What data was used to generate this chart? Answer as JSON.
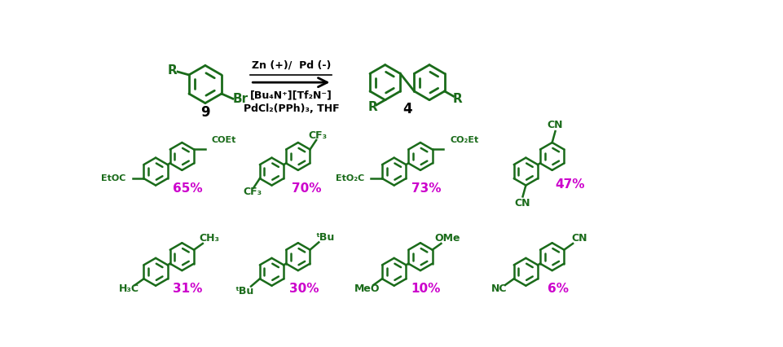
{
  "bg_color": "#ffffff",
  "dark_green": "#1a6b1a",
  "magenta": "#cc00cc",
  "black": "#000000",
  "figsize": [
    9.61,
    4.26
  ],
  "dpi": 100,
  "yields_row2": [
    "65%",
    "70%",
    "73%",
    "47%"
  ],
  "yields_row3": [
    "31%",
    "30%",
    "10%",
    "6%"
  ],
  "above_arrow": "Zn (+)/  Pd (-)",
  "below_arrow1": "[Bu₄N⁺][Tf₂N⁻]",
  "below_arrow2": "PdCl₂(PPh)₃, THF",
  "label9": "9",
  "label4": "4"
}
